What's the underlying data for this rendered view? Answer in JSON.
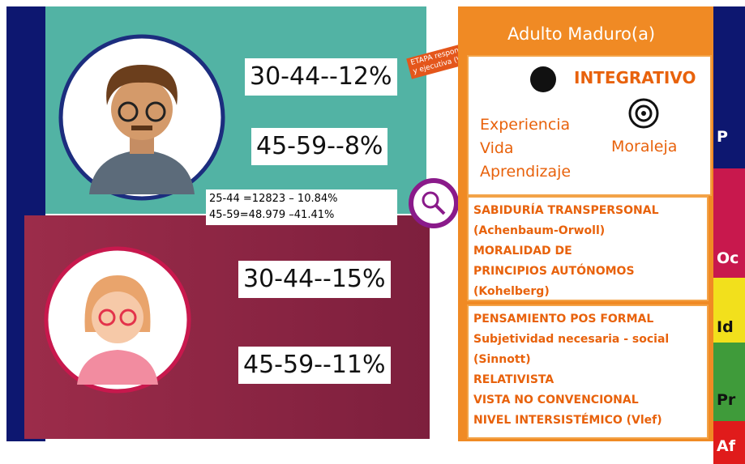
{
  "male": {
    "stats": [
      "30-44--12%",
      "45-59--8%"
    ]
  },
  "totals": [
    "25-44 =12823 – 10.84%",
    "45-59=48.979 –41.41%"
  ],
  "female": {
    "stats": [
      "30-44--15%",
      "45-59--11%"
    ]
  },
  "stamp": [
    "ETAPA responsable",
    "y ejecutiva (Willis)"
  ],
  "panel": {
    "title": "Adulto Maduro(a)",
    "section1": {
      "heading": "INTEGRATIVO",
      "words": [
        "Experiencia",
        "Vida",
        "Aprendizaje"
      ],
      "side": "Moraleja"
    },
    "section2": {
      "lines": [
        "SABIDURÍA TRANSPERSONAL",
        "(Achenbaum-Orwoll)",
        "MORALIDAD DE",
        "PRINCIPIOS AUTÓNOMOS",
        "(Kohelberg)"
      ]
    },
    "section3": {
      "lines": [
        "PENSAMIENTO POS FORMAL",
        "Subjetividad necesaria - social",
        "(Sinnott)",
        "RELATIVISTA",
        "VISTA NO CONVENCIONAL",
        "NIVEL INTERSISTÉMICO (Vlef)"
      ]
    }
  },
  "side_tabs": [
    "P",
    "Oc",
    "Id",
    "Pr",
    "Af"
  ]
}
